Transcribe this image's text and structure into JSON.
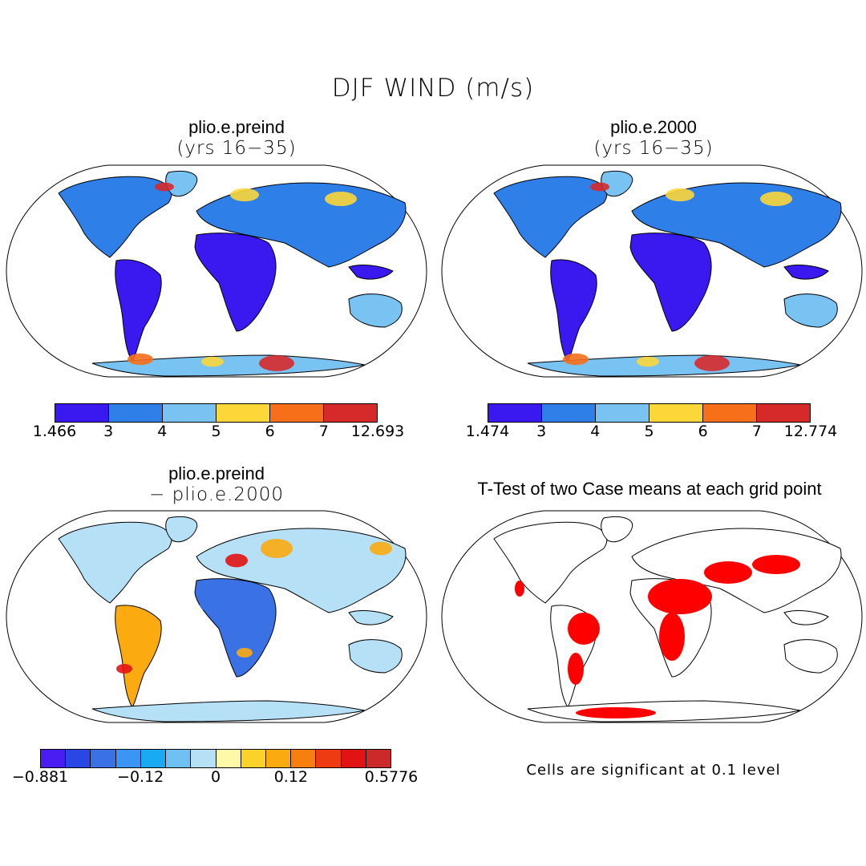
{
  "figure": {
    "title": "DJF WIND (m/s)"
  },
  "panels": [
    {
      "title": "plio.e.preind",
      "subtitle": "(yrs 16−35)",
      "colorbar": {
        "colors": [
          "#3a18f0",
          "#2f7fe8",
          "#79c3f2",
          "#fbd73a",
          "#f86f1a",
          "#d62a2a"
        ],
        "labels": [
          "1.466",
          "3",
          "4",
          "5",
          "6",
          "7",
          "12.693"
        ]
      }
    },
    {
      "title": "plio.e.2000",
      "subtitle": "(yrs 16−35)",
      "colorbar": {
        "colors": [
          "#3a18f0",
          "#2f7fe8",
          "#79c3f2",
          "#fbd73a",
          "#f86f1a",
          "#d62a2a"
        ],
        "labels": [
          "1.474",
          "3",
          "4",
          "5",
          "6",
          "7",
          "12.774"
        ]
      }
    },
    {
      "title": "plio.e.preind",
      "subtitle": "− plio.e.2000",
      "colorbar": {
        "colors": [
          "#4a1ef2",
          "#2a47e6",
          "#3a72e6",
          "#3a96f2",
          "#1aaaf2",
          "#6fc1f3",
          "#b6e0f5",
          "#fdf9a8",
          "#fbd22a",
          "#fbab10",
          "#f77f0d",
          "#ee3b12",
          "#e21313",
          "#cc2a2a"
        ],
        "labels": [
          "−0.881",
          "−0.12",
          "0",
          "0.12",
          "0.5776"
        ]
      }
    },
    {
      "title": "T-Test of two Case means at each grid point",
      "note": "Cells are significant at 0.1 level",
      "significance_color": "#ff0000"
    }
  ],
  "map_colors": {
    "low": "#3a18f0",
    "mid": "#2f7fe8",
    "light": "#79c3f2",
    "yellow": "#fbd73a",
    "orange": "#f86f1a",
    "red": "#d62a2a",
    "diff_neg": "#3a72e6",
    "diff_pale": "#b6e0f5",
    "diff_pos": "#fbab10",
    "diff_red": "#e21313",
    "sig": "#ff0000"
  }
}
